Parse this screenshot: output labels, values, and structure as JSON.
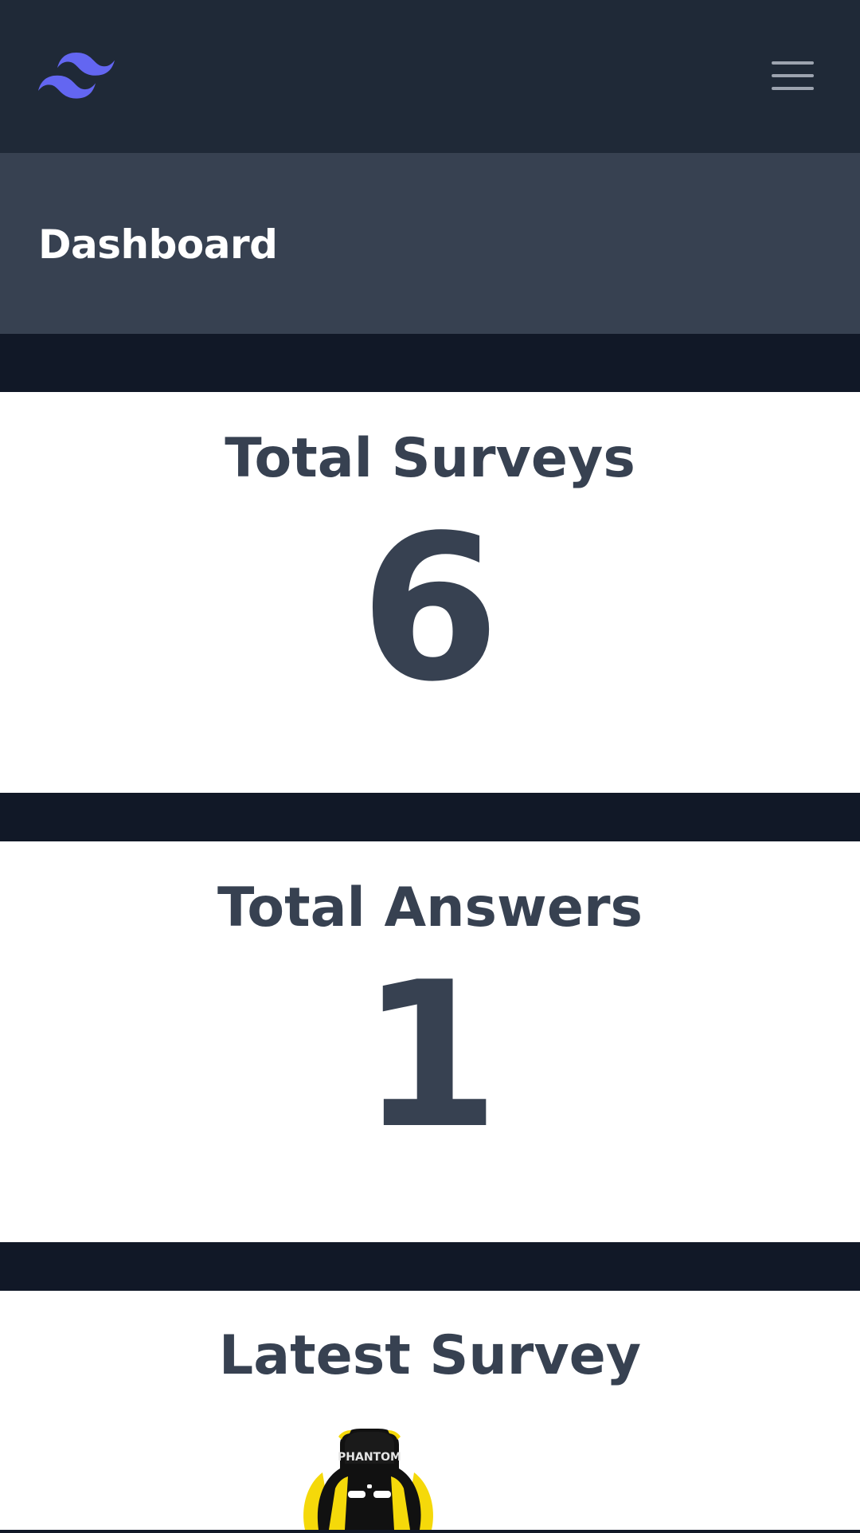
{
  "header": {
    "logo_icon": "tailwind-logo-icon",
    "menu_icon": "hamburger-menu-icon",
    "logo_color": "#6366f1"
  },
  "page": {
    "title": "Dashboard"
  },
  "stats": {
    "total_surveys": {
      "label": "Total Surveys",
      "value": "6"
    },
    "total_answers": {
      "label": "Total Answers",
      "value": "1"
    }
  },
  "latest_survey": {
    "label": "Latest Survey",
    "image_text": "PHANTOM",
    "image_icon": "gaming-chair-image"
  },
  "colors": {
    "nav_bg": "#1f2937",
    "header_bg": "#374151",
    "page_bg": "#111827",
    "text_dark": "#374151"
  }
}
